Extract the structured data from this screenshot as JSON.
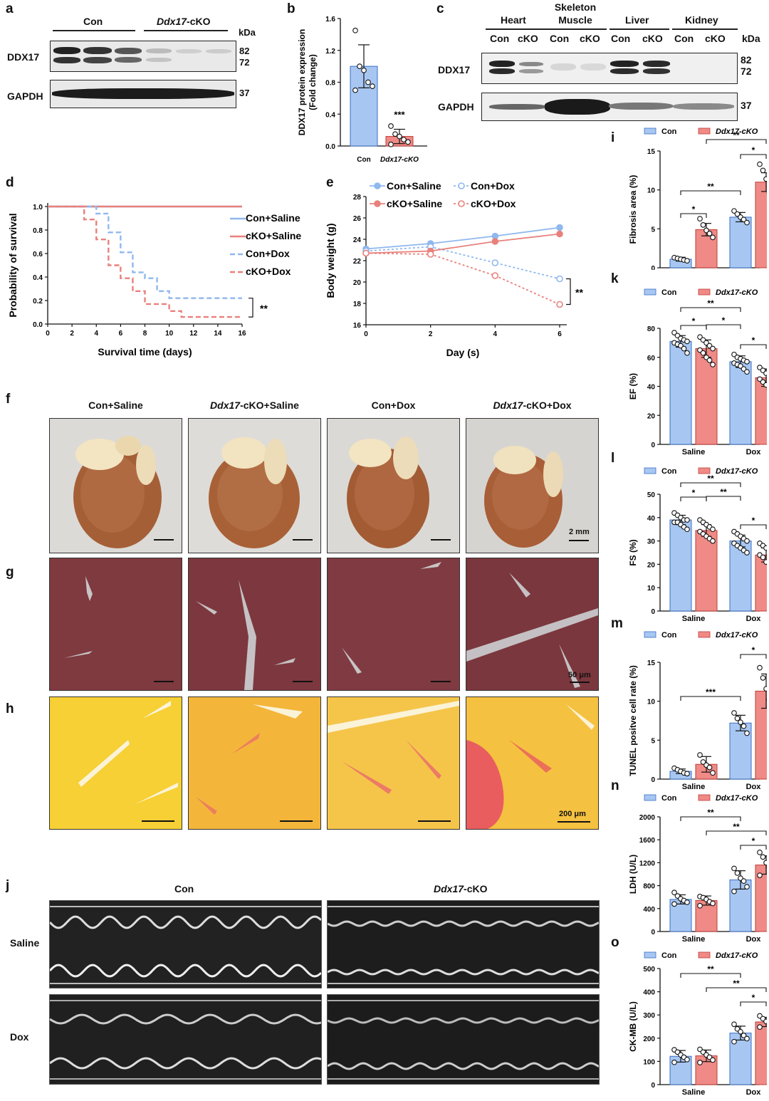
{
  "panel_letters": {
    "a": "a",
    "b": "b",
    "c": "c",
    "d": "d",
    "e": "e",
    "f": "f",
    "g": "g",
    "h": "h",
    "i": "i",
    "j": "j",
    "k": "k",
    "l": "l",
    "m": "m",
    "n": "n",
    "o": "o"
  },
  "panel_a": {
    "groups": [
      "Con",
      "Ddx17-cKO"
    ],
    "group_cko_italic": "Ddx17",
    "group_cko_suffix": "-cKO",
    "rows": [
      "DDX17",
      "GAPDH"
    ],
    "kda_label": "kDa",
    "markers": [
      "82",
      "72",
      "37"
    ]
  },
  "panel_c": {
    "tissues": [
      "Heart",
      "Skeleton Muscle",
      "Liver",
      "Kidney"
    ],
    "tissue_sm_line1": "Skeleton",
    "tissue_sm_line2": "Muscle",
    "lanes": [
      "Con",
      "cKO",
      "Con",
      "cKO",
      "Con",
      "cKO",
      "Con",
      "cKO"
    ],
    "rows": [
      "DDX17",
      "GAPDH"
    ],
    "kda_label": "kDa",
    "markers": [
      "82",
      "72",
      "37"
    ]
  },
  "scale_bars": {
    "f": "2 mm",
    "g": "50 μm",
    "h": "200 μm"
  },
  "panel_f": {
    "columns": [
      {
        "italic": "",
        "text": "Con+Saline"
      },
      {
        "italic": "Ddx17",
        "text": "-cKO+Saline"
      },
      {
        "italic": "",
        "text": "Con+Dox"
      },
      {
        "italic": "Ddx17",
        "text": "-cKO+Dox"
      }
    ]
  },
  "panel_j": {
    "columns": [
      "Con",
      "Ddx17-cKO"
    ],
    "col_cko_italic": "Ddx17",
    "col_cko_suffix": "-cKO",
    "rows": [
      "Saline",
      "Dox"
    ]
  },
  "colors": {
    "con": "#a7c7f2",
    "con_stroke": "#3a6fc4",
    "cko": "#ef8a86",
    "cko_stroke": "#c23c37",
    "con_line": "#8fb8ee",
    "cko_line": "#e8817c"
  },
  "chart_data": [
    {
      "id": "b",
      "type": "bar",
      "categories": [
        "Con",
        "Ddx17-cKO"
      ],
      "values": [
        1.0,
        0.12
      ],
      "errors": [
        0.27,
        0.09
      ],
      "points": [
        [
          1.45,
          1.0,
          0.95,
          0.8,
          0.75,
          0.7
        ],
        [
          0.25,
          0.15,
          0.12,
          0.08,
          0.05,
          0.02
        ]
      ],
      "ylabel": "DDX17 protein expression (Fold change)",
      "ylabel_line1": "DDX17 protein expression",
      "ylabel_line2": "(Fold change)",
      "ylim": [
        0,
        1.6
      ],
      "yticks": [
        "0.0",
        "0.4",
        "0.8",
        "1.2",
        "1.6"
      ],
      "annotation": "***"
    },
    {
      "id": "d",
      "type": "line",
      "xlabel": "Survival time (days)",
      "ylabel": "Probability of survival",
      "xlim": [
        0,
        16
      ],
      "ylim": [
        0,
        1.0
      ],
      "xticks": [
        "0",
        "2",
        "4",
        "6",
        "8",
        "10",
        "12",
        "14",
        "16"
      ],
      "yticks": [
        "0.0",
        "0.2",
        "0.4",
        "0.6",
        "0.8",
        "1.0"
      ],
      "series": [
        {
          "name": "Con+Saline",
          "x": [
            0,
            16
          ],
          "y": [
            1.0,
            1.0
          ]
        },
        {
          "name": "cKO+Saline",
          "x": [
            0,
            16
          ],
          "y": [
            1.0,
            1.0
          ]
        },
        {
          "name": "Con+Dox",
          "x": [
            0,
            4,
            4,
            5,
            5,
            6,
            6,
            7,
            7,
            8,
            8,
            9,
            9,
            10,
            10,
            16
          ],
          "y": [
            1.0,
            1.0,
            0.94,
            0.94,
            0.78,
            0.78,
            0.61,
            0.61,
            0.44,
            0.44,
            0.39,
            0.39,
            0.28,
            0.28,
            0.22,
            0.22
          ]
        },
        {
          "name": "cKO+Dox",
          "x": [
            0,
            3,
            3,
            4,
            4,
            5,
            5,
            6,
            6,
            7,
            7,
            8,
            8,
            10,
            10,
            11,
            11,
            16
          ],
          "y": [
            1.0,
            1.0,
            0.89,
            0.89,
            0.72,
            0.72,
            0.5,
            0.5,
            0.39,
            0.39,
            0.28,
            0.28,
            0.17,
            0.17,
            0.11,
            0.11,
            0.06,
            0.06
          ]
        }
      ],
      "annotation": "**"
    },
    {
      "id": "e",
      "type": "line",
      "xlabel": "Day (s)",
      "ylabel": "Body weight (g)",
      "xlim": [
        0,
        6
      ],
      "ylim": [
        16,
        28
      ],
      "xticks": [
        "0",
        "2",
        "4",
        "6"
      ],
      "yticks": [
        "16",
        "18",
        "20",
        "22",
        "24",
        "26",
        "28"
      ],
      "series": [
        {
          "name": "Con+Saline",
          "x": [
            0,
            2,
            4,
            6
          ],
          "y": [
            23.1,
            23.6,
            24.3,
            25.1
          ]
        },
        {
          "name": "Con+Dox",
          "x": [
            0,
            2,
            4,
            6
          ],
          "y": [
            22.9,
            23.3,
            21.8,
            20.3
          ]
        },
        {
          "name": "cKO+Saline",
          "x": [
            0,
            2,
            4,
            6
          ],
          "y": [
            22.7,
            22.9,
            23.8,
            24.5
          ]
        },
        {
          "name": "cKO+Dox",
          "x": [
            0,
            2,
            4,
            6
          ],
          "y": [
            22.7,
            22.6,
            20.6,
            17.9
          ]
        }
      ],
      "annotation": "**"
    },
    {
      "id": "i",
      "type": "bar",
      "categories": [
        "Saline",
        "Dox"
      ],
      "series": [
        {
          "name": "Con",
          "values": [
            1.1,
            6.5
          ],
          "errors": [
            0.25,
            0.6
          ],
          "points": [
            [
              1.3,
              1.2,
              1.1,
              1.0,
              0.9
            ],
            [
              7.3,
              6.9,
              6.5,
              6.2,
              5.8
            ]
          ]
        },
        {
          "name": "Ddx17-cKO",
          "values": [
            4.9,
            11.0
          ],
          "errors": [
            0.8,
            1.2
          ],
          "points": [
            [
              6.3,
              5.5,
              4.8,
              4.4,
              3.9
            ],
            [
              13.3,
              12.5,
              11.4,
              9.6,
              8.6
            ]
          ]
        }
      ],
      "ylabel": "Fibrosis area (%)",
      "ylim": [
        0,
        15
      ],
      "yticks": [
        "0",
        "5",
        "10",
        "15"
      ],
      "brackets": [
        {
          "a": [
            0,
            0
          ],
          "b": [
            0,
            1
          ],
          "label": "*"
        },
        {
          "a": [
            0,
            0
          ],
          "b": [
            1,
            0
          ],
          "label": "**"
        },
        {
          "a": [
            1,
            0
          ],
          "b": [
            1,
            1
          ],
          "label": "*"
        },
        {
          "a": [
            0,
            1
          ],
          "b": [
            1,
            1
          ],
          "label": "**"
        }
      ]
    },
    {
      "id": "k",
      "type": "bar",
      "categories": [
        "Saline",
        "Dox"
      ],
      "series": [
        {
          "name": "Con",
          "values": [
            71,
            57
          ],
          "errors": [
            4,
            4
          ],
          "points": [
            [
              77,
              75,
              73,
              72,
              71,
              70,
              69,
              68,
              66,
              63
            ],
            [
              62,
              60,
              59,
              58,
              57,
              56,
              55,
              54,
              52,
              50
            ]
          ]
        },
        {
          "name": "Ddx17-cKO",
          "values": [
            66,
            46
          ],
          "errors": [
            6,
            6
          ],
          "points": [
            [
              74,
              72,
              70,
              68,
              66,
              65,
              63,
              60,
              58,
              55
            ],
            [
              53,
              51,
              49,
              48,
              46,
              45,
              43,
              41,
              38,
              36
            ]
          ]
        }
      ],
      "ylabel": "EF (%)",
      "ylim": [
        0,
        80
      ],
      "yticks": [
        "0",
        "20",
        "40",
        "60",
        "80"
      ],
      "brackets": [
        {
          "a": [
            0,
            0
          ],
          "b": [
            0,
            1
          ],
          "label": "*"
        },
        {
          "a": [
            0,
            0
          ],
          "b": [
            1,
            0
          ],
          "label": "**"
        },
        {
          "a": [
            0,
            1
          ],
          "b": [
            1,
            0
          ],
          "label": "*"
        },
        {
          "a": [
            1,
            0
          ],
          "b": [
            1,
            1
          ],
          "label": "*"
        }
      ]
    },
    {
      "id": "l",
      "type": "bar",
      "categories": [
        "Saline",
        "Dox"
      ],
      "series": [
        {
          "name": "Con",
          "values": [
            39,
            30
          ],
          "errors": [
            2,
            2.5
          ],
          "points": [
            [
              42,
              41,
              40,
              39,
              39,
              38,
              38,
              37,
              36,
              35
            ],
            [
              34,
              33,
              32,
              31,
              30,
              29,
              28,
              27,
              26,
              25
            ]
          ]
        },
        {
          "name": "Ddx17-cKO",
          "values": [
            34.5,
            24
          ],
          "errors": [
            2.5,
            3
          ],
          "points": [
            [
              39,
              38,
              37,
              36,
              35,
              34,
              33,
              32,
              31,
              30
            ],
            [
              29,
              28,
              27,
              26,
              25,
              24,
              23,
              21,
              20,
              18
            ]
          ]
        }
      ],
      "ylabel": "FS (%)",
      "ylim": [
        0,
        50
      ],
      "yticks": [
        "0",
        "10",
        "20",
        "30",
        "40",
        "50"
      ],
      "brackets": [
        {
          "a": [
            0,
            0
          ],
          "b": [
            0,
            1
          ],
          "label": "*"
        },
        {
          "a": [
            0,
            0
          ],
          "b": [
            1,
            0
          ],
          "label": "**"
        },
        {
          "a": [
            0,
            1
          ],
          "b": [
            1,
            0
          ],
          "label": "**"
        },
        {
          "a": [
            1,
            0
          ],
          "b": [
            1,
            1
          ],
          "label": "*"
        }
      ]
    },
    {
      "id": "m",
      "type": "bar",
      "categories": [
        "Saline",
        "Dox"
      ],
      "series": [
        {
          "name": "Con",
          "values": [
            1.0,
            7.2
          ],
          "errors": [
            0.3,
            1.0
          ],
          "points": [
            [
              1.4,
              1.2,
              1.0,
              0.8,
              0.7
            ],
            [
              8.5,
              7.8,
              7.3,
              6.8,
              5.9
            ]
          ]
        },
        {
          "name": "Ddx17-cKO",
          "values": [
            1.9,
            11.3
          ],
          "errors": [
            1.0,
            2.2
          ],
          "points": [
            [
              3.1,
              2.2,
              1.8,
              1.5,
              0.8
            ],
            [
              14.3,
              13.0,
              11.6,
              10.2,
              8.9
            ]
          ]
        }
      ],
      "ylabel": "TUNEL positve cell rate (%)",
      "ylim": [
        0,
        15
      ],
      "yticks": [
        "0",
        "5",
        "10",
        "15"
      ],
      "brackets": [
        {
          "a": [
            0,
            0
          ],
          "b": [
            1,
            0
          ],
          "label": "***"
        },
        {
          "a": [
            1,
            0
          ],
          "b": [
            1,
            1
          ],
          "label": "*"
        }
      ]
    },
    {
      "id": "n",
      "type": "bar",
      "categories": [
        "Saline",
        "Dox"
      ],
      "series": [
        {
          "name": "Con",
          "values": [
            560,
            900
          ],
          "errors": [
            80,
            160
          ],
          "points": [
            [
              680,
              620,
              570,
              540,
              510,
              480
            ],
            [
              1100,
              1020,
              930,
              880,
              780,
              700
            ]
          ]
        },
        {
          "name": "Ddx17-cKO",
          "values": [
            540,
            1160
          ],
          "errors": [
            80,
            160
          ],
          "points": [
            [
              610,
              590,
              560,
              520,
              490,
              450
            ],
            [
              1380,
              1300,
              1200,
              1120,
              1040,
              980
            ]
          ]
        }
      ],
      "ylabel": "LDH (U/L)",
      "ylim": [
        0,
        2000
      ],
      "yticks": [
        "0",
        "400",
        "800",
        "1200",
        "1600",
        "2000"
      ],
      "brackets": [
        {
          "a": [
            0,
            0
          ],
          "b": [
            1,
            0
          ],
          "label": "**"
        },
        {
          "a": [
            0,
            1
          ],
          "b": [
            1,
            1
          ],
          "label": "**"
        },
        {
          "a": [
            1,
            0
          ],
          "b": [
            1,
            1
          ],
          "label": "*"
        }
      ]
    },
    {
      "id": "o",
      "type": "bar",
      "categories": [
        "Saline",
        "Dox"
      ],
      "series": [
        {
          "name": "Con",
          "values": [
            122,
            222
          ],
          "errors": [
            25,
            30
          ],
          "points": [
            [
              150,
              140,
              128,
              118,
              108,
              96
            ],
            [
              260,
              240,
              228,
              212,
              198,
              185
            ]
          ]
        },
        {
          "name": "Ddx17-cKO",
          "values": [
            124,
            270
          ],
          "errors": [
            25,
            20
          ],
          "points": [
            [
              152,
              140,
              128,
              118,
              106,
              95
            ],
            [
              296,
              284,
              272,
              266,
              258,
              248
            ]
          ]
        }
      ],
      "ylabel": "CK-MB (U/L)",
      "ylim": [
        0,
        500
      ],
      "yticks": [
        "0",
        "100",
        "200",
        "300",
        "400",
        "500"
      ],
      "brackets": [
        {
          "a": [
            0,
            0
          ],
          "b": [
            1,
            0
          ],
          "label": "**"
        },
        {
          "a": [
            0,
            1
          ],
          "b": [
            1,
            1
          ],
          "label": "**"
        },
        {
          "a": [
            1,
            0
          ],
          "b": [
            1,
            1
          ],
          "label": "*"
        }
      ]
    }
  ]
}
